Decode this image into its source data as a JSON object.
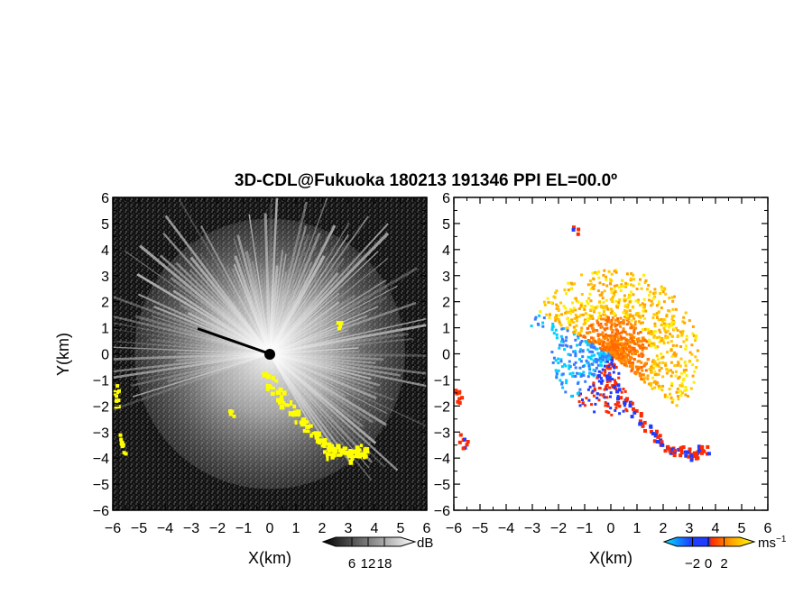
{
  "title": "3D-CDL@Fukuoka 180213 191346 PPI EL=00.0º",
  "chart_data": [
    {
      "type": "heatmap",
      "panel": "reflectivity",
      "xlabel": "X(km)",
      "ylabel": "Y(km)",
      "xlim": [
        -6,
        6
      ],
      "ylim": [
        -6,
        6
      ],
      "xticks": [
        "−6",
        "−5",
        "−4",
        "−3",
        "−2",
        "−1",
        "0",
        "1",
        "2",
        "3",
        "4",
        "5",
        "6"
      ],
      "yticks": [
        "6",
        "5",
        "4",
        "3",
        "2",
        "1",
        "0",
        "−1",
        "−2",
        "−3",
        "−4",
        "−5",
        "−6"
      ],
      "background_color": "#000000",
      "highlight_color": "#ffff00",
      "highlight_echo_path": [
        [
          -0.2,
          -0.8
        ],
        [
          0.4,
          -1.6
        ],
        [
          1.0,
          -2.4
        ],
        [
          1.6,
          -3.0
        ],
        [
          2.0,
          -3.4
        ],
        [
          2.3,
          -3.8
        ],
        [
          2.7,
          -3.6
        ],
        [
          3.0,
          -3.9
        ],
        [
          3.4,
          -3.6
        ],
        [
          3.6,
          -3.7
        ]
      ],
      "colorbar": {
        "unit": "dB",
        "ticks": [
          "6",
          "12",
          "18"
        ],
        "colors": [
          "#000000",
          "#ffffff"
        ]
      }
    },
    {
      "type": "heatmap",
      "panel": "doppler_velocity",
      "xlabel": "X(km)",
      "xlim": [
        -6,
        6
      ],
      "ylim": [
        -6,
        6
      ],
      "xticks": [
        "−6",
        "−5",
        "−4",
        "−3",
        "−2",
        "−1",
        "0",
        "1",
        "2",
        "3",
        "4",
        "5",
        "6"
      ],
      "yticks": [
        "6",
        "5",
        "4",
        "3",
        "2",
        "1",
        "0",
        "−1",
        "−2",
        "−3",
        "−4",
        "−5",
        "−6"
      ],
      "background_color": "#ffffff",
      "colorbar": {
        "unit": "ms",
        "unit_exponent": "−1",
        "ticks": [
          "−2",
          "0",
          "2"
        ],
        "colors": [
          "#00e5ff",
          "#1f3cff",
          "#ff2a00",
          "#ffa500",
          "#ffff00"
        ]
      }
    }
  ]
}
